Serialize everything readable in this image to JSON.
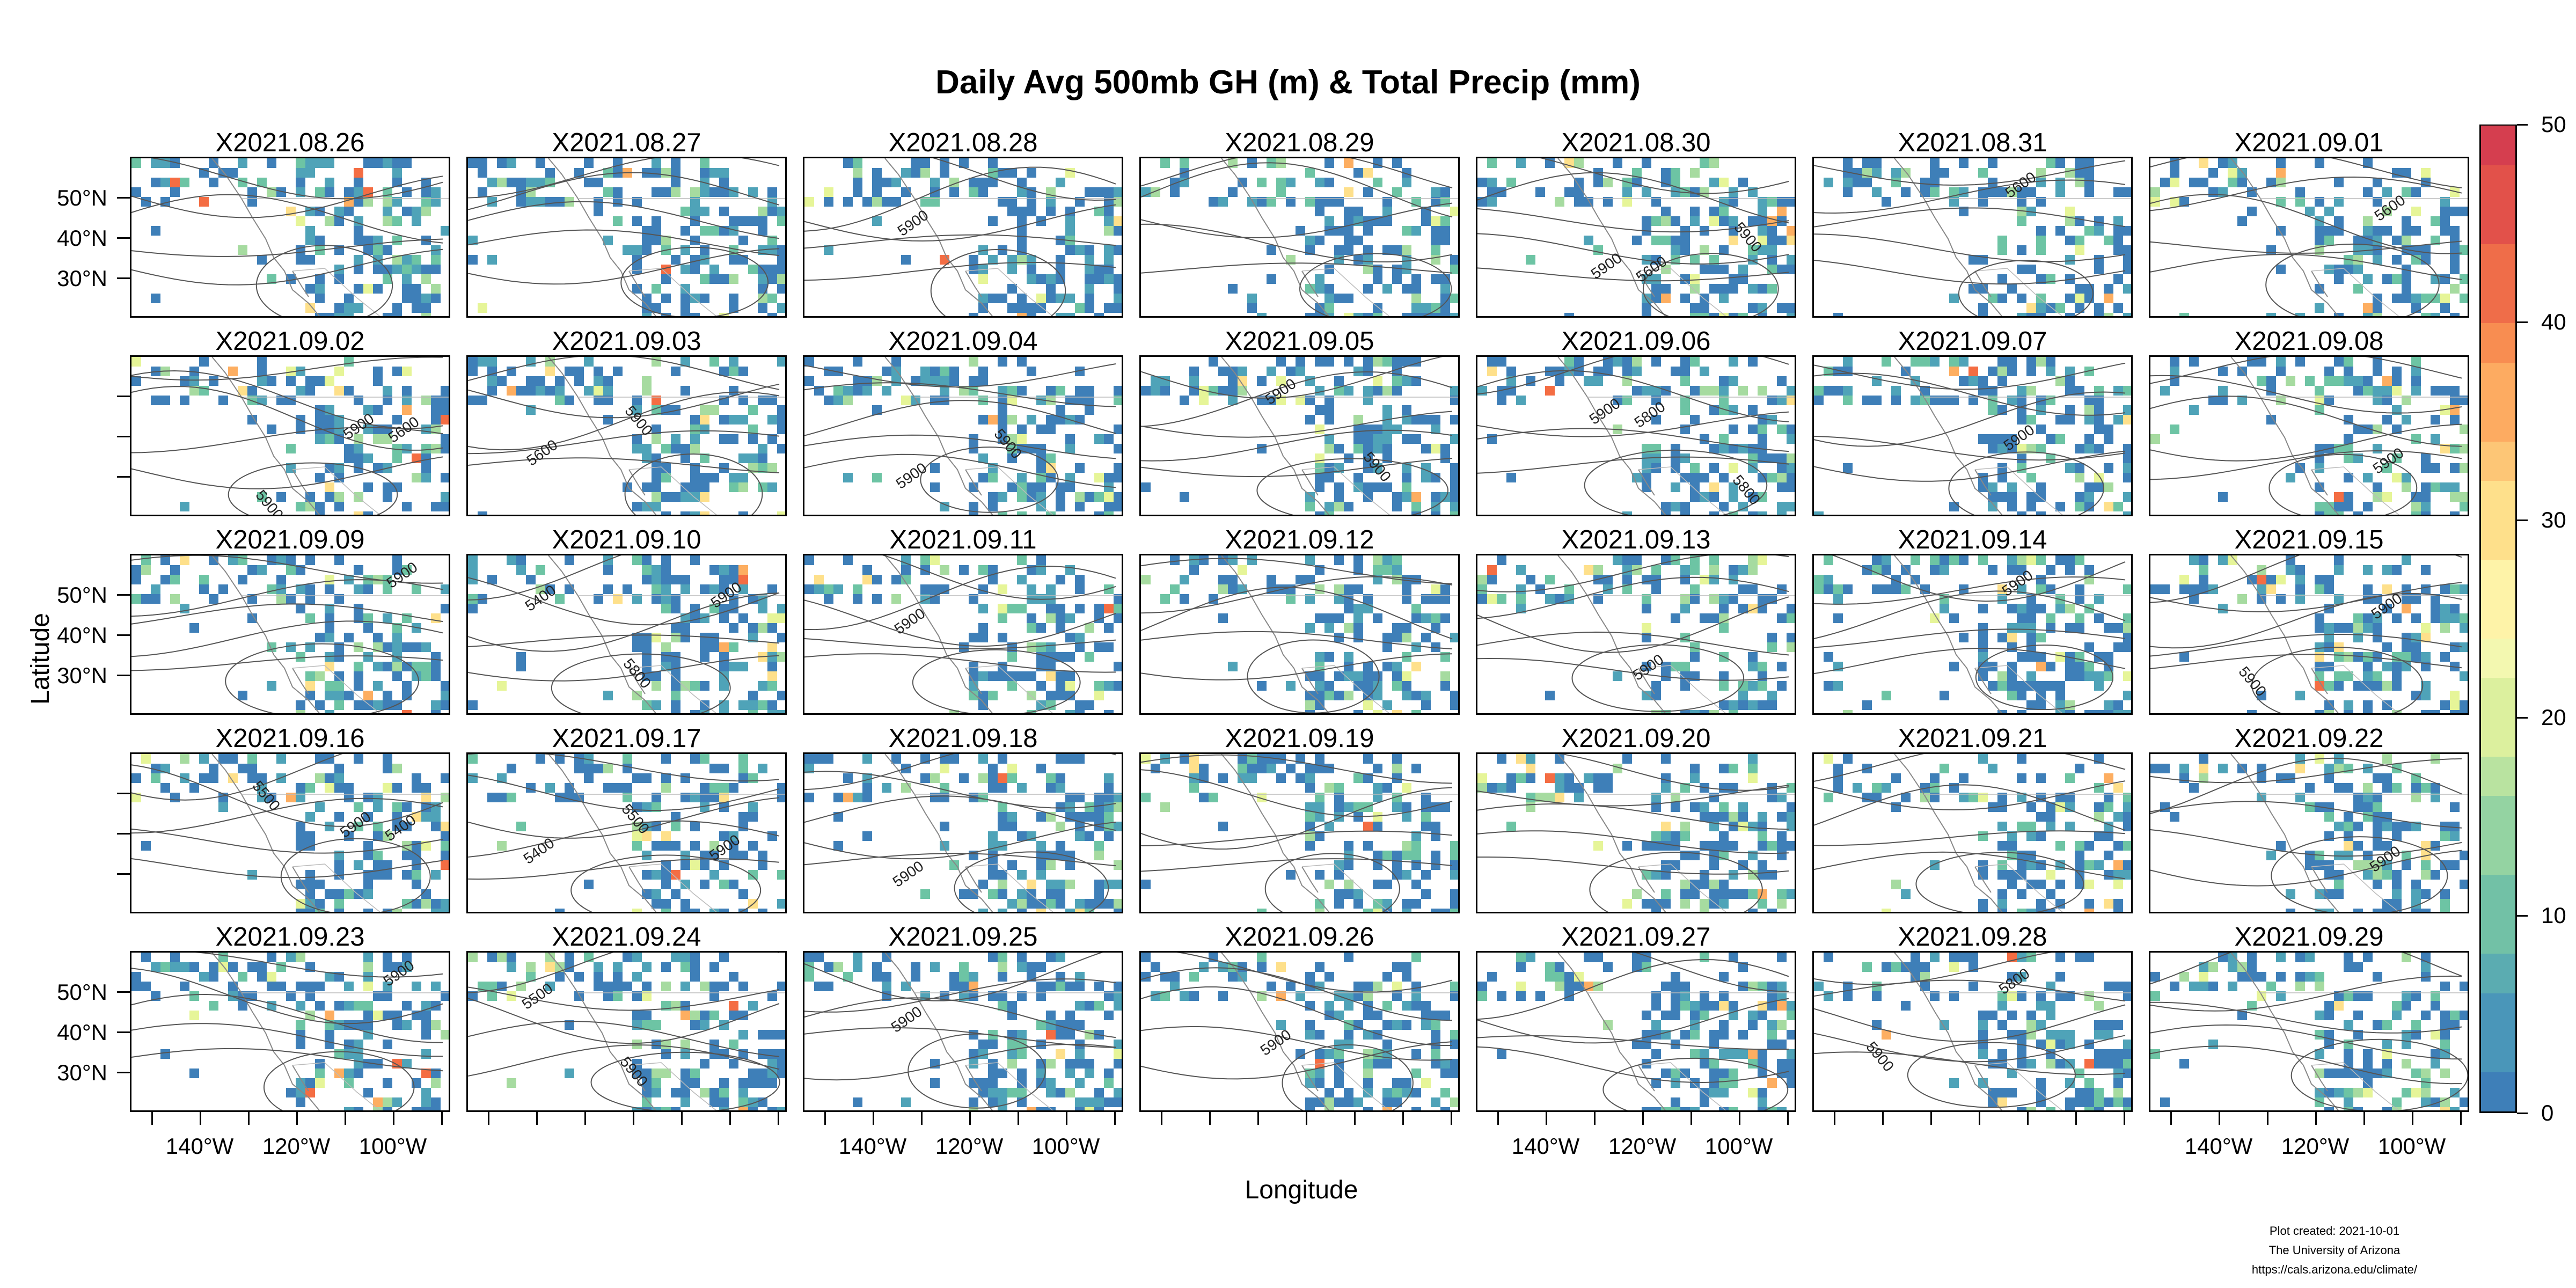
{
  "chart_data": {
    "type": "heatmap",
    "title": "Daily Avg 500mb GH (m) & Total Precip (mm)",
    "xlabel": "Longitude",
    "ylabel": "Latitude",
    "x_ticks": [
      "140°W",
      "120°W",
      "100°W"
    ],
    "y_ticks": [
      "50°N",
      "40°N",
      "30°N"
    ],
    "colorbar": {
      "min": 0,
      "max": 50,
      "ticks": [
        "0",
        "10",
        "20",
        "30",
        "40",
        "50"
      ],
      "palette": [
        "#3e7fb8",
        "#4fa3b8",
        "#6dc4a4",
        "#a6dba0",
        "#e6f598",
        "#fee08b",
        "#fdae61",
        "#f46d43",
        "#d53e4f"
      ]
    },
    "panels": [
      {
        "title": "X2021.08.26",
        "labels": []
      },
      {
        "title": "X2021.08.27",
        "labels": []
      },
      {
        "title": "X2021.08.28",
        "labels": [
          "5900"
        ]
      },
      {
        "title": "X2021.08.29",
        "labels": []
      },
      {
        "title": "X2021.08.30",
        "labels": [
          "5600",
          "5900",
          "5900"
        ]
      },
      {
        "title": "X2021.08.31",
        "labels": [
          "5600"
        ]
      },
      {
        "title": "X2021.09.01",
        "labels": [
          "5600"
        ]
      },
      {
        "title": "X2021.09.02",
        "labels": [
          "5600",
          "5900",
          "5900"
        ]
      },
      {
        "title": "X2021.09.03",
        "labels": [
          "5600",
          "5900"
        ]
      },
      {
        "title": "X2021.09.04",
        "labels": [
          "5900",
          "5900"
        ]
      },
      {
        "title": "X2021.09.05",
        "labels": [
          "5900",
          "5900"
        ]
      },
      {
        "title": "X2021.09.06",
        "labels": [
          "5800",
          "5800",
          "5900"
        ]
      },
      {
        "title": "X2021.09.07",
        "labels": [
          "5900"
        ]
      },
      {
        "title": "X2021.09.08",
        "labels": [
          "5900"
        ]
      },
      {
        "title": "X2021.09.09",
        "labels": [
          "5900"
        ]
      },
      {
        "title": "X2021.09.10",
        "labels": [
          "5400",
          "5800",
          "5900"
        ]
      },
      {
        "title": "X2021.09.11",
        "labels": [
          "5900"
        ]
      },
      {
        "title": "X2021.09.12",
        "labels": []
      },
      {
        "title": "X2021.09.13",
        "labels": [
          "5900"
        ]
      },
      {
        "title": "X2021.09.14",
        "labels": [
          "5900"
        ]
      },
      {
        "title": "X2021.09.15",
        "labels": [
          "5900",
          "5900"
        ]
      },
      {
        "title": "X2021.09.16",
        "labels": [
          "5400",
          "5500",
          "5900"
        ]
      },
      {
        "title": "X2021.09.17",
        "labels": [
          "5400",
          "5500",
          "5900"
        ]
      },
      {
        "title": "X2021.09.18",
        "labels": [
          "5900"
        ]
      },
      {
        "title": "X2021.09.19",
        "labels": []
      },
      {
        "title": "X2021.09.20",
        "labels": []
      },
      {
        "title": "X2021.09.21",
        "labels": []
      },
      {
        "title": "X2021.09.22",
        "labels": [
          "5900"
        ]
      },
      {
        "title": "X2021.09.23",
        "labels": [
          "5900"
        ]
      },
      {
        "title": "X2021.09.24",
        "labels": [
          "5500",
          "5900"
        ]
      },
      {
        "title": "X2021.09.25",
        "labels": [
          "5900"
        ]
      },
      {
        "title": "X2021.09.26",
        "labels": [
          "5900"
        ]
      },
      {
        "title": "X2021.09.27",
        "labels": []
      },
      {
        "title": "X2021.09.28",
        "labels": [
          "5800",
          "5900"
        ]
      },
      {
        "title": "X2021.09.29",
        "labels": []
      }
    ]
  },
  "footer": {
    "line1": "Plot created: 2021-10-01",
    "line2": "The University of Arizona",
    "line3": "https://cals.arizona.edu/climate/"
  }
}
